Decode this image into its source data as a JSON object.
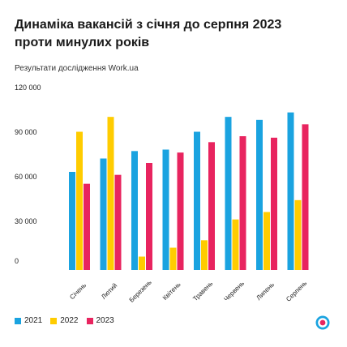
{
  "header": {
    "title_line1": "Динаміка вакансій з січня до серпня 2023",
    "title_line2": "проти минулих років",
    "subtitle": "Результати дослідження Work.ua"
  },
  "colors": {
    "2021": "#1aa3e0",
    "2022": "#ffcc00",
    "2023": "#e8245f"
  },
  "chart_data": {
    "type": "bar",
    "title": "Динаміка вакансій з січня до серпня 2023 проти минулих років",
    "subtitle": "Результати дослідження Work.ua",
    "categories": [
      "Січень",
      "Лютий",
      "Березень",
      "Квітень",
      "Травень",
      "Червень",
      "Липень",
      "Серпень"
    ],
    "series": [
      {
        "name": "2021",
        "values": [
          66000,
          75000,
          80000,
          81000,
          93000,
          103000,
          101000,
          106000
        ]
      },
      {
        "name": "2022",
        "values": [
          93000,
          103000,
          9000,
          15000,
          20000,
          34000,
          39000,
          47000
        ]
      },
      {
        "name": "2023",
        "values": [
          58000,
          64000,
          72000,
          79000,
          86000,
          90000,
          89000,
          98000
        ]
      }
    ],
    "yticks": [
      0,
      30000,
      60000,
      90000,
      120000
    ],
    "ytick_labels": [
      "0",
      "30 000",
      "60 000",
      "90 000",
      "120 000"
    ],
    "ylim": [
      0,
      120000
    ],
    "xlabel": "",
    "ylabel": "",
    "grid": false,
    "legend_position": "bottom-left"
  },
  "legend": {
    "items": [
      {
        "label": "2021",
        "color": "#1aa3e0"
      },
      {
        "label": "2022",
        "color": "#ffcc00"
      },
      {
        "label": "2023",
        "color": "#e8245f"
      }
    ]
  },
  "logo": {
    "icon": "work-ua-logo-icon"
  }
}
